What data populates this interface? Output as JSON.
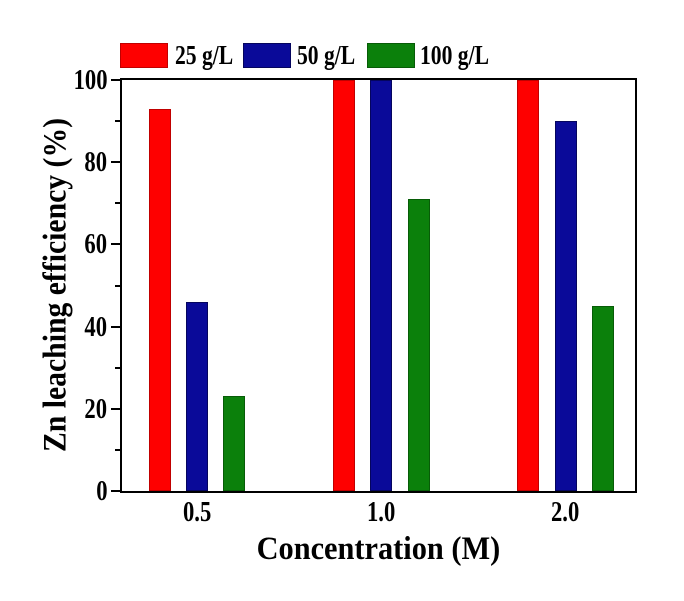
{
  "chart_data": {
    "type": "bar",
    "categories": [
      "0.5",
      "1.0",
      "2.0"
    ],
    "series": [
      {
        "name": "25 g/L",
        "color": "#fe0000",
        "edge_color": "#c00000",
        "values": [
          93,
          100,
          100
        ]
      },
      {
        "name": "50 g/L",
        "color": "#0a0a99",
        "edge_color": "#05055e",
        "values": [
          46,
          100,
          90
        ]
      },
      {
        "name": "100 g/L",
        "color": "#0b800b",
        "edge_color": "#075c07",
        "values": [
          23,
          71,
          45
        ]
      }
    ],
    "title": "",
    "xlabel": "Concentration (M)",
    "ylabel": "Zn leaching efficiency (%)",
    "ylim": [
      0,
      100
    ],
    "yticks_major": [
      0,
      20,
      40,
      60,
      80,
      100
    ],
    "yticks_minor": [
      10,
      30,
      50,
      70,
      90
    ],
    "grid": false,
    "legend_position": "top",
    "plot_background": "#ffffff",
    "axis_color": "#000000"
  }
}
